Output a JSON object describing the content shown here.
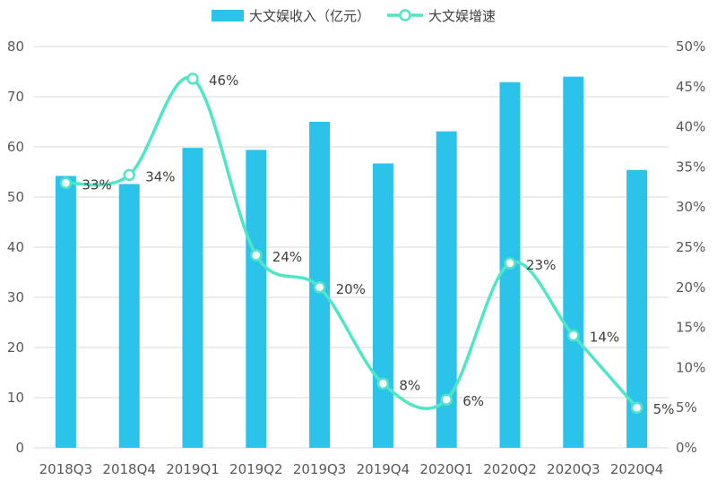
{
  "chart_data": {
    "type": "bar+line",
    "categories": [
      "2018Q3",
      "2018Q4",
      "2019Q1",
      "2019Q2",
      "2019Q3",
      "2019Q4",
      "2020Q1",
      "2020Q2",
      "2020Q3",
      "2020Q4"
    ],
    "series": [
      {
        "name": "大文娱收入（亿元）",
        "kind": "bar",
        "axis": "left",
        "values": [
          54.2,
          52.6,
          59.8,
          59.4,
          65.0,
          56.7,
          63.1,
          72.9,
          74.0,
          55.4
        ]
      },
      {
        "name": "大文娱增速",
        "kind": "line",
        "axis": "right",
        "smooth": true,
        "values": [
          0.33,
          0.34,
          0.46,
          0.24,
          0.2,
          0.08,
          0.06,
          0.23,
          0.14,
          0.05
        ],
        "labels": [
          "33%",
          "34%",
          "46%",
          "24%",
          "20%",
          "8%",
          "6%",
          "23%",
          "14%",
          "5%"
        ]
      }
    ],
    "y_left": {
      "ylim": [
        0,
        80
      ],
      "ticks": [
        "0",
        "10",
        "20",
        "30",
        "40",
        "50",
        "60",
        "70",
        "80"
      ]
    },
    "y_right": {
      "ylim": [
        0,
        0.5
      ],
      "ticks": [
        "0%",
        "5%",
        "10%",
        "15%",
        "20%",
        "25%",
        "30%",
        "35%",
        "40%",
        "45%",
        "50%"
      ]
    },
    "legend_position": "top-center",
    "grid": true,
    "colors": {
      "bar": "#2BC3EA",
      "line": "#4FE6C8",
      "grid": "#D9D9D9",
      "axis_text": "#595959"
    }
  }
}
